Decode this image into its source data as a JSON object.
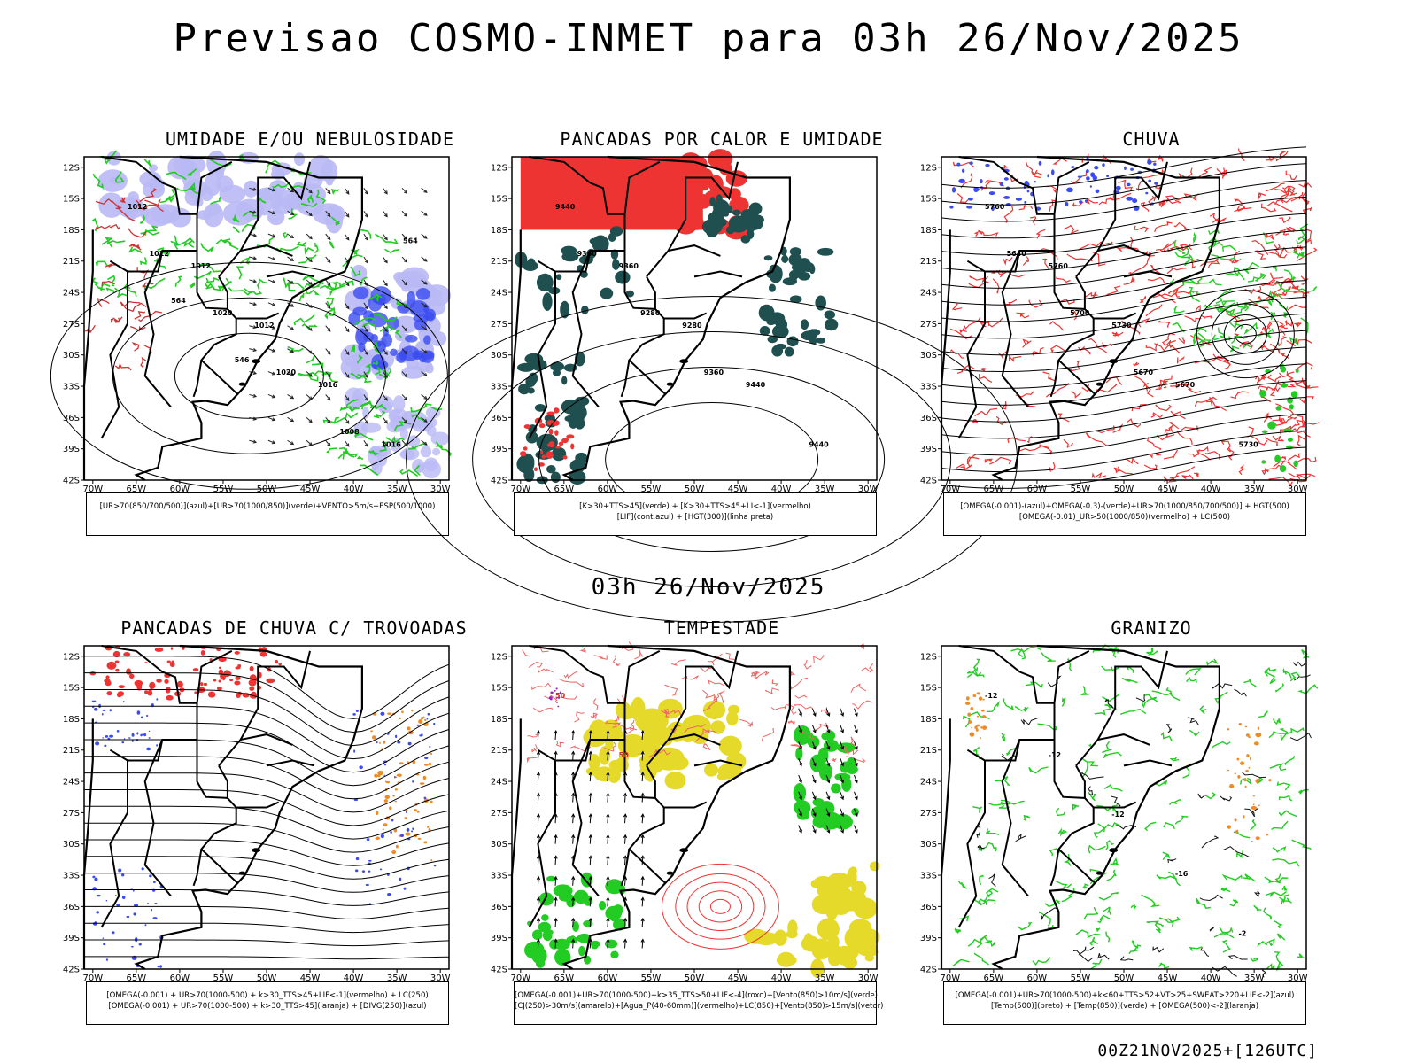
{
  "title": "Previsao COSMO-INMET  para 03h 26/Nov/2025",
  "mid_date": "03h 26/Nov/2025",
  "footer": "00Z21NOV2025+[126UTC]",
  "axes": {
    "lat_labels": [
      "12S",
      "15S",
      "18S",
      "21S",
      "24S",
      "27S",
      "30S",
      "33S",
      "36S",
      "39S",
      "42S"
    ],
    "lon_labels": [
      "70W",
      "65W",
      "60W",
      "55W",
      "50W",
      "45W",
      "40W",
      "35W",
      "30W"
    ]
  },
  "colors": {
    "blue": "#3b4cf0",
    "light_blue": "#b9b9f5",
    "green": "#22cc22",
    "red": "#ee3333",
    "dark_teal": "#1f4f4f",
    "yellow": "#e5d92a",
    "orange": "#f08a24",
    "purple": "#a020c0"
  },
  "panels": [
    {
      "id": "p1",
      "title": "UMIDADE E/OU NEBULOSIDADE",
      "legend": [
        "[UR>70(850/700/500)](azul)+[UR>70(1000/850)](verde)+VENTO>5m/s+ESP(500/1000)"
      ],
      "labels": [
        "1012",
        "1012",
        "1012",
        "1016",
        "1016",
        "1012",
        "1020",
        "1020",
        "1008",
        "564",
        "564",
        "546"
      ]
    },
    {
      "id": "p2",
      "title": "PANCADAS POR CALOR E UMIDADE",
      "legend": [
        "[K>30+TTS>45](verde) + [K>30+TTS>45+LI<-1](vermelho)",
        "[LIF](cont.azul) + [HGT(300)](linha preta)"
      ],
      "labels": [
        "9440",
        "9360",
        "9280",
        "9440",
        "9440",
        "9360",
        "9280",
        "9360"
      ]
    },
    {
      "id": "p3",
      "title": "CHUVA",
      "legend": [
        "[OMEGA(-0.001)-(azul)+OMEGA(-0.3)-(verde)+UR>70(1000/850/700/500)] + HGT(500)",
        "[OMEGA(-0.01)_UR>50(1000/850)(vermelho) + LC(500)"
      ],
      "labels": [
        "5760",
        "5760",
        "5730",
        "5670",
        "5730",
        "5640",
        "5700",
        "5670"
      ]
    },
    {
      "id": "p4",
      "title": "PANCADAS DE CHUVA C/ TROVOADAS",
      "legend": [
        "[OMEGA(-0.001) + UR>70(1000-500) + k>30_TTS>45+LIF<-1](vermelho) + LC(250)",
        "[OMEGA(-0.001) + UR>70(1000-500) + k>30_TTS>45](laranja) + [DIVG(250)](azul)"
      ],
      "labels": []
    },
    {
      "id": "p5",
      "title": "TEMPESTADE",
      "legend": [
        "[OMEGA(-0.001)+UR>70(1000-500)+k>35_TTS>50+LIF<-4](roxo)+[Vento(850)>10m/s](verde)",
        "[CJ(250)>30m/s](amarelo)+[Agua_P(40-60mm)](vermelho)+LC(850)+[Vento(850)>15m/s](vetor)"
      ],
      "labels": [
        "50",
        "50"
      ]
    },
    {
      "id": "p6",
      "title": "GRANIZO",
      "legend": [
        "[OMEGA(-0.001)+UR>70(1000-500)+k<60+TTS>52+VT>25+SWEAT>220+LIF<-2](azul)",
        "[Temp(500)](preto) + [Temp(850)](verde) + [OMEGA(500)<-2](laranja)"
      ],
      "labels": [
        "-12",
        "-12",
        "-12",
        "-16",
        "-2"
      ]
    }
  ]
}
